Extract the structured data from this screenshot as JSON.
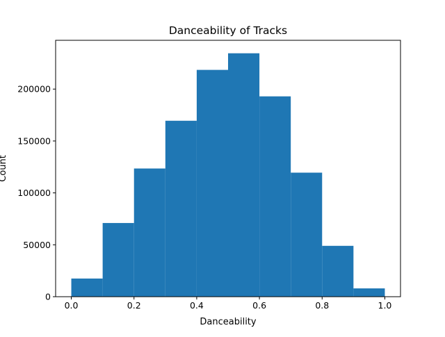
{
  "chart_data": {
    "type": "bar",
    "title": "Danceability of Tracks",
    "xlabel": "Danceability",
    "ylabel": "Count",
    "bin_edges": [
      0.0,
      0.1,
      0.2,
      0.3,
      0.4,
      0.5,
      0.6,
      0.7,
      0.8,
      0.9,
      1.0
    ],
    "values": [
      17500,
      71000,
      123500,
      169500,
      218500,
      234500,
      193000,
      119500,
      49000,
      8000
    ],
    "xlim": [
      -0.05,
      1.05
    ],
    "ylim": [
      0,
      247000
    ],
    "xticks": [
      0.0,
      0.2,
      0.4,
      0.6,
      0.8,
      1.0
    ],
    "xtick_labels": [
      "0.0",
      "0.2",
      "0.4",
      "0.6",
      "0.8",
      "1.0"
    ],
    "yticks": [
      0,
      50000,
      100000,
      150000,
      200000
    ],
    "ytick_labels": [
      "0",
      "50000",
      "100000",
      "150000",
      "200000"
    ],
    "bar_color": "#1f77b4",
    "grid": false
  }
}
